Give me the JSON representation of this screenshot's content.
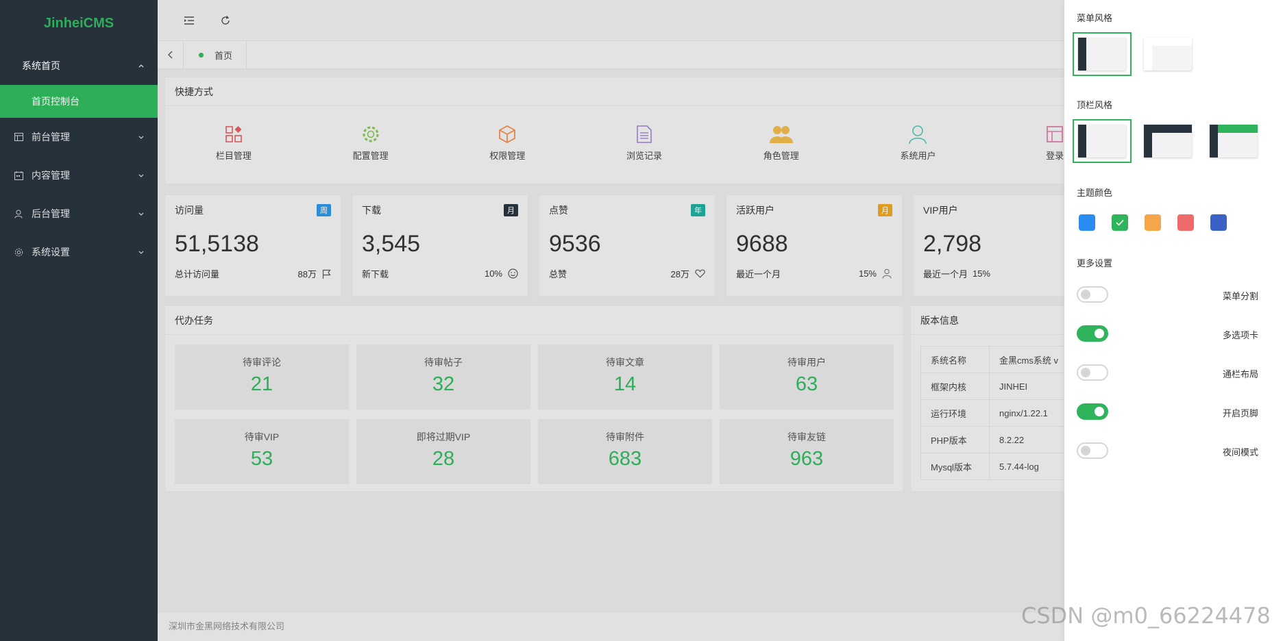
{
  "app": {
    "logo": "JinheiCMS"
  },
  "sidebar": {
    "items": [
      {
        "label": "系统首页",
        "icon": "home",
        "open": true
      },
      {
        "label": "首页控制台",
        "sub": true
      },
      {
        "label": "前台管理",
        "icon": "table-icon"
      },
      {
        "label": "内容管理",
        "icon": "calendar-icon"
      },
      {
        "label": "后台管理",
        "icon": "user-icon"
      },
      {
        "label": "系统设置",
        "icon": "gear-icon"
      }
    ]
  },
  "tabs": {
    "home": "首页"
  },
  "shortcuts": {
    "title": "快捷方式",
    "items": [
      {
        "label": "栏目管理",
        "icon": "grid-icon",
        "color": "#e05a5a"
      },
      {
        "label": "配置管理",
        "icon": "gear-icon",
        "color": "#7bc24c"
      },
      {
        "label": "权限管理",
        "icon": "cube-icon",
        "color": "#f0874a"
      },
      {
        "label": "浏览记录",
        "icon": "document-icon",
        "color": "#9d7fd0"
      },
      {
        "label": "角色管理",
        "icon": "users-icon",
        "color": "#e8b54a"
      },
      {
        "label": "系统用户",
        "icon": "user-icon",
        "color": "#4bbfb0"
      },
      {
        "label": "登录",
        "icon": "table-icon",
        "color": "#d77aa6"
      }
    ]
  },
  "stats": [
    {
      "title": "访问量",
      "badge": "周",
      "badge_color": "#2a93e0",
      "value": "51,5138",
      "foot": "总计访问量",
      "extra": "88万",
      "icon": "flag-icon"
    },
    {
      "title": "下载",
      "badge": "月",
      "badge_color": "#28333e",
      "value": "3,545",
      "foot": "新下载",
      "extra": "10%",
      "icon": "smile-icon"
    },
    {
      "title": "点赞",
      "badge": "年",
      "badge_color": "#1fa89a",
      "value": "9536",
      "foot": "总赞",
      "extra": "28万",
      "icon": "heart-icon"
    },
    {
      "title": "活跃用户",
      "badge": "月",
      "badge_color": "#e6a321",
      "value": "9688",
      "foot": "最近一个月",
      "extra": "15%",
      "icon": "user-icon"
    },
    {
      "title": "VIP用户",
      "badge": "",
      "badge_color": "#e6a321",
      "value": "2,798",
      "foot": "最近一个月",
      "extra": "15%",
      "icon": ""
    }
  ],
  "todo": {
    "title": "代办任务",
    "items": [
      {
        "label": "待审评论",
        "value": "21"
      },
      {
        "label": "待审帖子",
        "value": "32"
      },
      {
        "label": "待审文章",
        "value": "14"
      },
      {
        "label": "待审用户",
        "value": "63"
      },
      {
        "label": "待审VIP",
        "value": "53"
      },
      {
        "label": "即将过期VIP",
        "value": "28"
      },
      {
        "label": "待审附件",
        "value": "683"
      },
      {
        "label": "待审友链",
        "value": "963"
      }
    ]
  },
  "version": {
    "title": "版本信息",
    "rows": [
      {
        "k": "系统名称",
        "v": "金黑cms系统 v"
      },
      {
        "k": "框架内核",
        "v": "JINHEI"
      },
      {
        "k": "运行环境",
        "v": "nginx/1.22.1"
      },
      {
        "k": "PHP版本",
        "v": "8.2.22"
      },
      {
        "k": "Mysql版本",
        "v": "5.7.44-log"
      }
    ]
  },
  "footer": {
    "text": "深圳市金黑网络技术有限公司"
  },
  "settings": {
    "menu_style": "菜单风格",
    "top_style": "顶栏风格",
    "theme_color": "主题颜色",
    "more": "更多设置",
    "colors": [
      "#2a8cf0",
      "#2fb45b",
      "#f5a64a",
      "#ef6a6a",
      "#3a62c4"
    ],
    "toggles": [
      {
        "label": "菜单分割",
        "on": false
      },
      {
        "label": "多选项卡",
        "on": true
      },
      {
        "label": "通栏布局",
        "on": false
      },
      {
        "label": "开启页脚",
        "on": true
      },
      {
        "label": "夜间模式",
        "on": false
      }
    ]
  },
  "watermark": "CSDN @m0_66224478"
}
